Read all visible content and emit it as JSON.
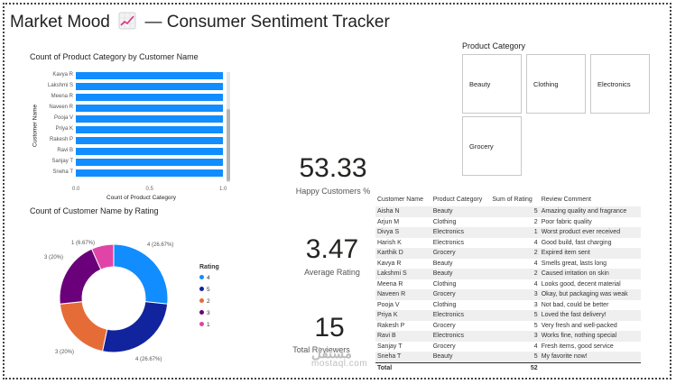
{
  "header": {
    "title_left": "Market Mood",
    "title_icon": "chart-increasing-icon",
    "title_right": "— Consumer Sentiment Tracker"
  },
  "bar_chart": {
    "chart_data": {
      "type": "bar",
      "orientation": "horizontal",
      "title": "Count of Product Category by Customer Name",
      "ylabel": "Customer Name",
      "xlabel": "Count of Product Category",
      "categories": [
        "Kavya R",
        "Lakshmi S",
        "Meena R",
        "Naveen R",
        "Pooja V",
        "Priya K",
        "Rakesh P",
        "Ravi B",
        "Sanjay T",
        "Sneha T"
      ],
      "values": [
        1,
        1,
        1,
        1,
        1,
        1,
        1,
        1,
        1,
        1
      ],
      "xlim": [
        0,
        1
      ],
      "xticks": [
        "0.0",
        "0.5",
        "1.0"
      ],
      "color": "#118DFF"
    }
  },
  "donut_chart": {
    "chart_data": {
      "type": "pie",
      "title": "Count of Customer Name by Rating",
      "legend_title": "Rating",
      "series": [
        {
          "name": "4",
          "value": 4,
          "label": "4 (26.67%)",
          "color": "#118DFF"
        },
        {
          "name": "5",
          "value": 4,
          "label": "4 (26.67%)",
          "color": "#12239E"
        },
        {
          "name": "2",
          "value": 3,
          "label": "3 (20%)",
          "color": "#E66C37"
        },
        {
          "name": "3",
          "value": 3,
          "label": "3 (20%)",
          "color": "#6B007B"
        },
        {
          "name": "1",
          "value": 1,
          "label": "1 (6.67%)",
          "color": "#E044A7"
        }
      ]
    }
  },
  "kpis": [
    {
      "value": "53.33",
      "label": "Happy Customers %"
    },
    {
      "value": "3.47",
      "label": "Average Rating"
    },
    {
      "value": "15",
      "label": "Total Reviewers"
    }
  ],
  "slicer": {
    "title": "Product Category",
    "options": [
      "Beauty",
      "Clothing",
      "Electronics",
      "Grocery"
    ]
  },
  "table": {
    "headers": [
      "Customer Name",
      "Product Category",
      "Sum of Rating",
      "Review Comment"
    ],
    "rows": [
      [
        "Aisha N",
        "Beauty",
        "5",
        "Amazing quality and fragrance"
      ],
      [
        "Arjun M",
        "Clothing",
        "2",
        "Poor fabric quality"
      ],
      [
        "Divya S",
        "Electronics",
        "1",
        "Worst product ever received"
      ],
      [
        "Harish K",
        "Electronics",
        "4",
        "Good build, fast charging"
      ],
      [
        "Karthik D",
        "Grocery",
        "2",
        "Expired item sent"
      ],
      [
        "Kavya R",
        "Beauty",
        "4",
        "Smells great, lasts long"
      ],
      [
        "Lakshmi S",
        "Beauty",
        "2",
        "Caused irritation on skin"
      ],
      [
        "Meena R",
        "Clothing",
        "4",
        "Looks good, decent material"
      ],
      [
        "Naveen R",
        "Grocery",
        "3",
        "Okay, but packaging was weak"
      ],
      [
        "Pooja V",
        "Clothing",
        "3",
        "Not bad, could be better"
      ],
      [
        "Priya K",
        "Electronics",
        "5",
        "Loved the fast delivery!"
      ],
      [
        "Rakesh P",
        "Grocery",
        "5",
        "Very fresh and well-packed"
      ],
      [
        "Ravi B",
        "Electronics",
        "3",
        "Works fine, nothing special"
      ],
      [
        "Sanjay T",
        "Grocery",
        "4",
        "Fresh items, good service"
      ],
      [
        "Sneha T",
        "Beauty",
        "5",
        "My favorite now!"
      ]
    ],
    "total_label": "Total",
    "total_value": "52"
  },
  "watermark": {
    "arabic": "مستقل",
    "latin": "mostaql.com"
  }
}
